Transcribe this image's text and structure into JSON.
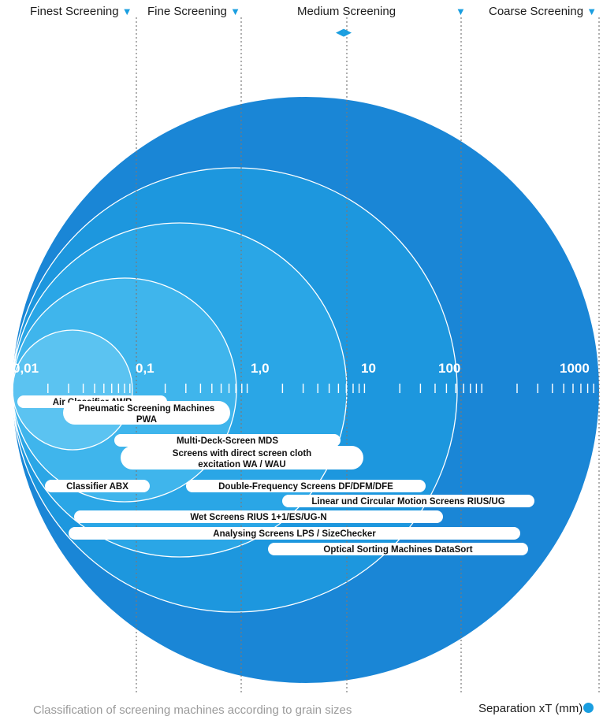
{
  "header": {
    "finest": "Finest Screening",
    "fine": "Fine Screening",
    "medium": "Medium Screening",
    "coarse": "Coarse Screening"
  },
  "scale": {
    "labels": [
      "0,01",
      "0,1",
      "1,0",
      "10",
      "100",
      "1000"
    ]
  },
  "machines": [
    {
      "id": "awr",
      "text": "Air Classifier AWR",
      "from": 0.012,
      "to": 0.065
    },
    {
      "id": "pwa",
      "text": "Pneumatic Screening Machines\nPWA",
      "from": 0.035,
      "to": 0.9
    },
    {
      "id": "mds",
      "text": "Multi-Deck-Screen MDS",
      "from": 0.05,
      "to": 7
    },
    {
      "id": "wa",
      "text": "Screens with direct screen cloth\nexcitation WA / WAU",
      "from": 0.06,
      "to": 15
    },
    {
      "id": "abx",
      "text": "Classifier ABX",
      "from": 0.018,
      "to": 0.09
    },
    {
      "id": "df",
      "text": "Double-Frequency Screens DF/DFM/DFE",
      "from": 0.35,
      "to": 25
    },
    {
      "id": "rius",
      "text": "Linear und Circular Motion Screens RIUS/UG",
      "from": 3,
      "to": 500
    },
    {
      "id": "wet",
      "text": "Wet Screens RIUS 1+1/ES/UG-N",
      "from": 0.025,
      "to": 130
    },
    {
      "id": "lps",
      "text": "Analysing Screens LPS / SizeChecker",
      "from": 0.022,
      "to": 300
    },
    {
      "id": "ds",
      "text": "Optical Sorting Machines DataSort",
      "from": 4,
      "to": 400
    }
  ],
  "footer": {
    "caption": "Classification of screening machines according to grain sizes",
    "separation": "Separation xT (mm)"
  },
  "colors": {
    "outer": "#1a86d6",
    "shade1": "#1d97de",
    "shade2": "#2aa6e6",
    "shade3": "#3fb5ec",
    "shade4": "#5bc3f1",
    "dots": "#7a7a7a"
  }
}
